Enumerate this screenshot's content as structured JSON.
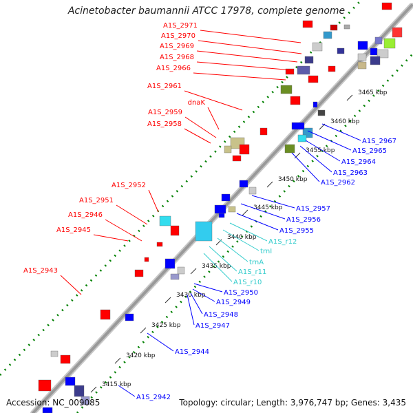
{
  "title": "Acinetobacter baumannii ATCC 17978, complete genome",
  "accession": "Accession: NC_009085",
  "summary": "Topology: circular; Length: 3,976,747 bp; Genes: 3,435",
  "ticks": [
    "3415 kbp",
    "3420 kbp",
    "3425 kbp",
    "3430 kbp",
    "3435 kbp",
    "3440 kbp",
    "3445 kbp",
    "3450 kbp",
    "3455 kbp",
    "3460 kbp",
    "3465 kbp"
  ],
  "labels_forward": [
    "A1S_2971",
    "A1S_2970",
    "A1S_2969",
    "A1S_2968",
    "A1S_2966",
    "A1S_2961",
    "dnaK",
    "A1S_2959",
    "A1S_2958",
    "A1S_2952",
    "A1S_2951",
    "A1S_2946",
    "A1S_2945",
    "A1S_2943"
  ],
  "labels_reverse": [
    "A1S_2967",
    "A1S_2965",
    "A1S_2964",
    "A1S_2963",
    "A1S_2962",
    "A1S_2957",
    "A1S_2956",
    "A1S_2955",
    "A1S_2950",
    "A1S_2949",
    "A1S_2948",
    "A1S_2947",
    "A1S_2944",
    "A1S_2942"
  ],
  "labels_rna": [
    "A1S_r12",
    "trnI",
    "trnA",
    "A1S_r11",
    "A1S_r10"
  ],
  "colors": {
    "forward": "#ff0000",
    "reverse": "#0000ff",
    "rna": "#33cccc",
    "backbone": "#999999",
    "gc_dots": "#008000"
  }
}
